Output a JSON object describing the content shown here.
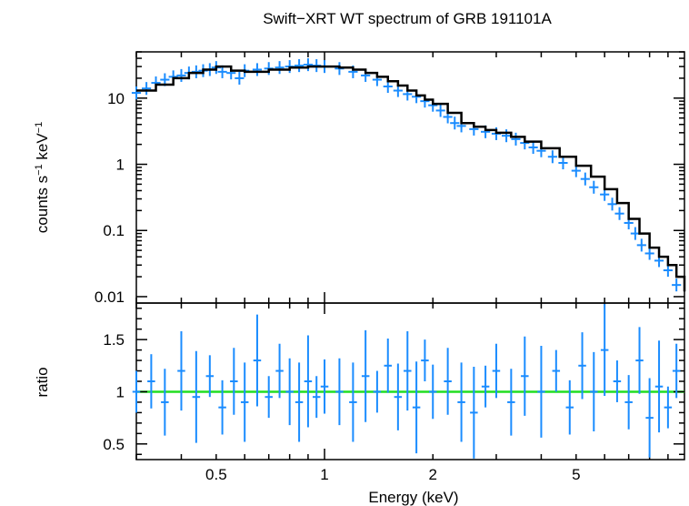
{
  "chart_data": {
    "type": "scatter",
    "title": "Swift−XRT WT spectrum of GRB 191101A",
    "xlabel": "Energy (keV)",
    "x_scale": "log",
    "xlim": [
      0.3,
      10
    ],
    "x_ticks": [
      {
        "value": 0.5,
        "label": "0.5"
      },
      {
        "value": 1,
        "label": "1"
      },
      {
        "value": 2,
        "label": "2"
      },
      {
        "value": 5,
        "label": "5"
      }
    ],
    "panels": [
      {
        "name": "spectrum",
        "ylabel_main": "counts s",
        "ylabel_exp1": "−1",
        "ylabel_mid": " keV",
        "ylabel_exp2": "−1",
        "y_scale": "log",
        "ylim": [
          0.008,
          50
        ],
        "y_ticks": [
          {
            "value": 0.01,
            "label": "0.01"
          },
          {
            "value": 0.1,
            "label": "0.1"
          },
          {
            "value": 1,
            "label": "1"
          },
          {
            "value": 10,
            "label": "10"
          }
        ],
        "series": [
          {
            "name": "data",
            "color": "#1a8cff",
            "x": [
              0.3,
              0.32,
              0.34,
              0.36,
              0.38,
              0.4,
              0.42,
              0.44,
              0.46,
              0.48,
              0.5,
              0.52,
              0.55,
              0.58,
              0.6,
              0.65,
              0.7,
              0.75,
              0.8,
              0.85,
              0.9,
              0.95,
              1.0,
              1.1,
              1.2,
              1.3,
              1.4,
              1.5,
              1.6,
              1.7,
              1.8,
              1.9,
              2.0,
              2.1,
              2.2,
              2.3,
              2.4,
              2.6,
              2.8,
              3.0,
              3.2,
              3.4,
              3.6,
              3.8,
              4.0,
              4.3,
              4.6,
              5.0,
              5.3,
              5.6,
              6.0,
              6.3,
              6.6,
              7.0,
              7.3,
              7.6,
              8.0,
              8.5,
              9.0,
              9.5
            ],
            "y": [
              12,
              14,
              17,
              19,
              21,
              22,
              24,
              25,
              26,
              27,
              29,
              25,
              24,
              20,
              26,
              27,
              28,
              29,
              30,
              31,
              32,
              31,
              30,
              28,
              25,
              22,
              19,
              15,
              13,
              11.5,
              10.5,
              9,
              7.8,
              6.5,
              5.2,
              4.2,
              3.8,
              3.4,
              3.1,
              2.9,
              2.7,
              2.4,
              2.1,
              1.8,
              1.6,
              1.3,
              1.05,
              0.8,
              0.6,
              0.45,
              0.35,
              0.25,
              0.18,
              0.13,
              0.09,
              0.06,
              0.045,
              0.035,
              0.025,
              0.015
            ]
          },
          {
            "name": "model",
            "color": "#000000",
            "x": [
              0.3,
              0.34,
              0.38,
              0.42,
              0.46,
              0.5,
              0.55,
              0.6,
              0.7,
              0.8,
              0.9,
              1.0,
              1.1,
              1.2,
              1.3,
              1.4,
              1.5,
              1.6,
              1.7,
              1.8,
              1.9,
              2.0,
              2.2,
              2.4,
              2.6,
              2.8,
              3.0,
              3.3,
              3.6,
              4.0,
              4.5,
              5.0,
              5.5,
              6.0,
              6.5,
              7.0,
              7.5,
              8.0,
              8.5,
              9.0,
              9.5,
              10.0
            ],
            "y": [
              13,
              16,
              20,
              24,
              27,
              30,
              26,
              25,
              27,
              29,
              30,
              30,
              29,
              27,
              24,
              21,
              18,
              15.5,
              13,
              11,
              9.5,
              8.2,
              6.0,
              4.2,
              3.7,
              3.3,
              3.0,
              2.6,
              2.2,
              1.75,
              1.3,
              0.95,
              0.65,
              0.42,
              0.26,
              0.15,
              0.09,
              0.055,
              0.04,
              0.03,
              0.02,
              0.012
            ]
          }
        ]
      },
      {
        "name": "ratio",
        "ylabel": "ratio",
        "y_scale": "linear",
        "ylim": [
          0.35,
          1.85
        ],
        "y_ticks": [
          {
            "value": 0.5,
            "label": "0.5"
          },
          {
            "value": 1,
            "label": "1"
          },
          {
            "value": 1.5,
            "label": "1.5"
          }
        ],
        "reference_line": {
          "value": 1,
          "color": "#22dd22"
        },
        "series": [
          {
            "name": "ratio",
            "color": "#1a8cff",
            "x": [
              0.3,
              0.33,
              0.36,
              0.4,
              0.44,
              0.48,
              0.52,
              0.56,
              0.6,
              0.65,
              0.7,
              0.75,
              0.8,
              0.85,
              0.9,
              0.95,
              1.0,
              1.1,
              1.2,
              1.3,
              1.4,
              1.5,
              1.6,
              1.7,
              1.8,
              1.9,
              2.0,
              2.2,
              2.4,
              2.6,
              2.8,
              3.0,
              3.3,
              3.6,
              4.0,
              4.4,
              4.8,
              5.2,
              5.6,
              6.0,
              6.5,
              7.0,
              7.5,
              8.0,
              8.5,
              9.0,
              9.5
            ],
            "y": [
              1.0,
              1.1,
              0.9,
              1.2,
              0.95,
              1.15,
              0.85,
              1.1,
              0.9,
              1.3,
              0.95,
              1.2,
              1.0,
              0.9,
              1.1,
              0.95,
              1.05,
              1.0,
              0.9,
              1.15,
              1.0,
              1.25,
              0.95,
              1.2,
              0.85,
              1.3,
              1.0,
              1.1,
              0.9,
              0.8,
              1.05,
              1.2,
              0.9,
              1.15,
              1.0,
              1.2,
              0.85,
              1.25,
              1.0,
              1.4,
              1.1,
              0.9,
              1.3,
              0.75,
              1.05,
              0.85,
              1.2
            ]
          }
        ]
      }
    ]
  }
}
